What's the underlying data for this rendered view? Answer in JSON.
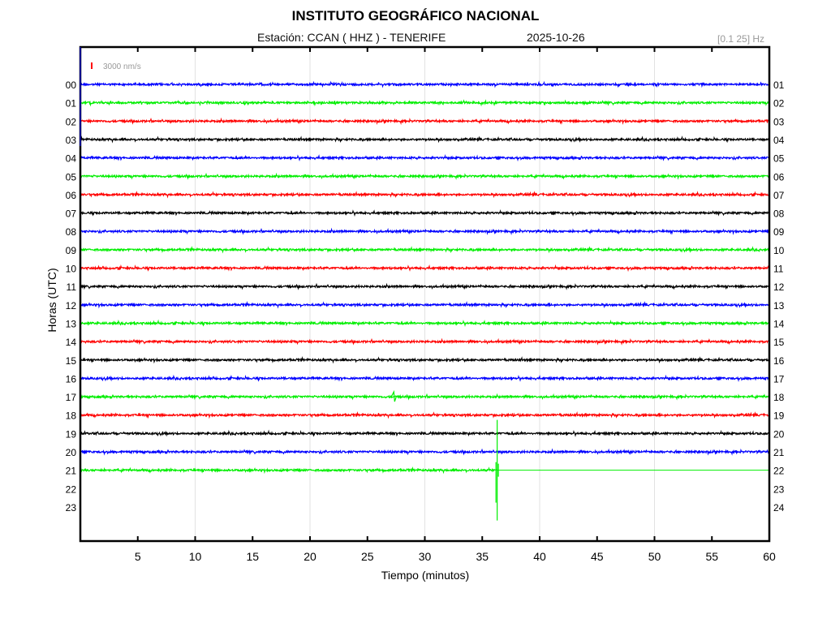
{
  "header": {
    "title": "INSTITUTO GEOGRÁFICO NACIONAL",
    "station": "Estación:  CCAN ( HHZ ) - TENERIFE",
    "date": "2025-10-26",
    "filter": "[0.1 25] Hz"
  },
  "chart_data": {
    "type": "line",
    "title": "INSTITUTO GEOGRÁFICO NACIONAL",
    "xlabel": "Tiempo (minutos)",
    "ylabel": "Horas (UTC)",
    "xlim": [
      0,
      60
    ],
    "xticks": [
      5,
      10,
      15,
      20,
      25,
      30,
      35,
      40,
      45,
      50,
      55,
      60
    ],
    "grid_x": [
      10,
      20,
      30,
      40,
      50
    ],
    "scale_label": "3000 nm/s",
    "scale_color": "#ff0000",
    "left_labels": [
      "00",
      "01",
      "02",
      "03",
      "04",
      "05",
      "06",
      "07",
      "08",
      "09",
      "10",
      "11",
      "12",
      "13",
      "14",
      "15",
      "16",
      "17",
      "18",
      "19",
      "20",
      "21",
      "22",
      "23"
    ],
    "right_labels": [
      "01",
      "02",
      "03",
      "04",
      "05",
      "06",
      "07",
      "08",
      "09",
      "10",
      "11",
      "12",
      "13",
      "14",
      "15",
      "16",
      "17",
      "18",
      "19",
      "20",
      "21",
      "22",
      "23",
      "24"
    ],
    "trace_colors": [
      "#0000ff",
      "#00ee00",
      "#ff0000",
      "#000000"
    ],
    "traces_recorded": 22,
    "last_trace_end_min": 36.3,
    "events": [
      {
        "hour": 17,
        "minute": 27.3,
        "amplitude": "small"
      },
      {
        "hour": 21,
        "minute": 36.3,
        "amplitude": "large"
      }
    ]
  }
}
